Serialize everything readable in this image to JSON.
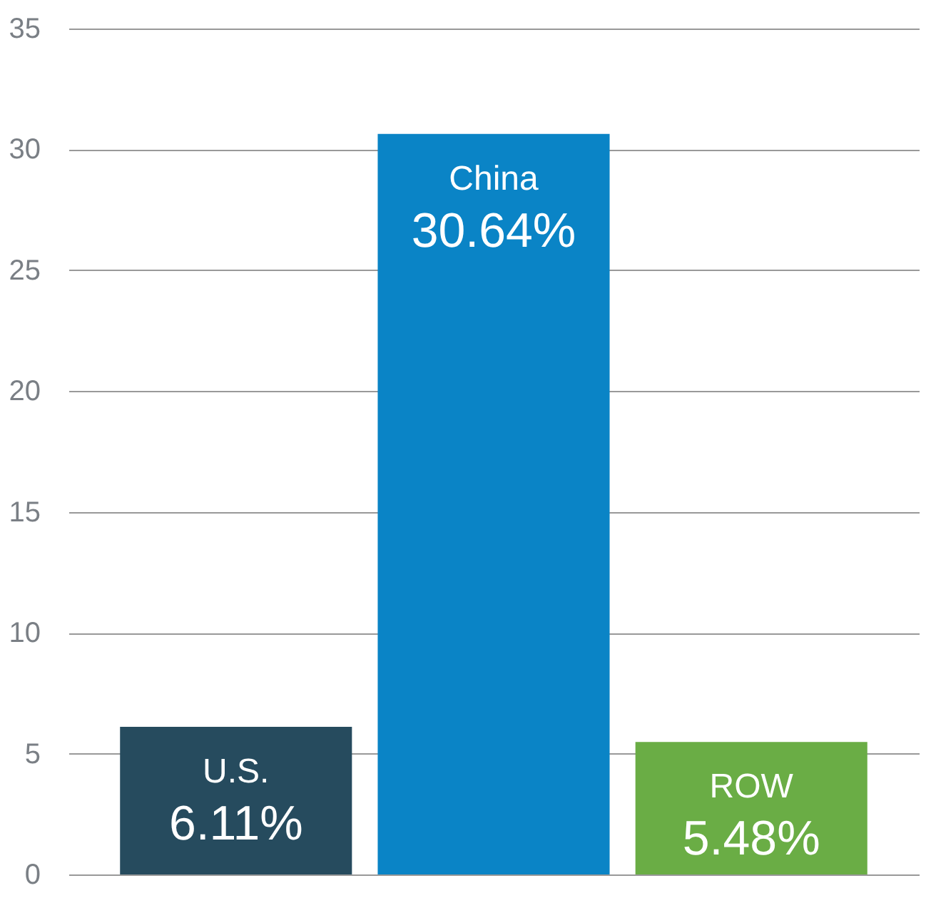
{
  "chart_data": {
    "type": "bar",
    "categories": [
      "U.S.",
      "China",
      "ROW"
    ],
    "values": [
      6.11,
      30.64,
      5.48
    ],
    "value_labels": [
      "6.11%",
      "30.64%",
      "5.48%"
    ],
    "colors": [
      "#264b5e",
      "#0a84c6",
      "#6aad45"
    ],
    "ylim": [
      0,
      35
    ],
    "yticks": [
      0,
      5,
      10,
      15,
      20,
      25,
      30,
      35
    ],
    "grid": "y"
  }
}
